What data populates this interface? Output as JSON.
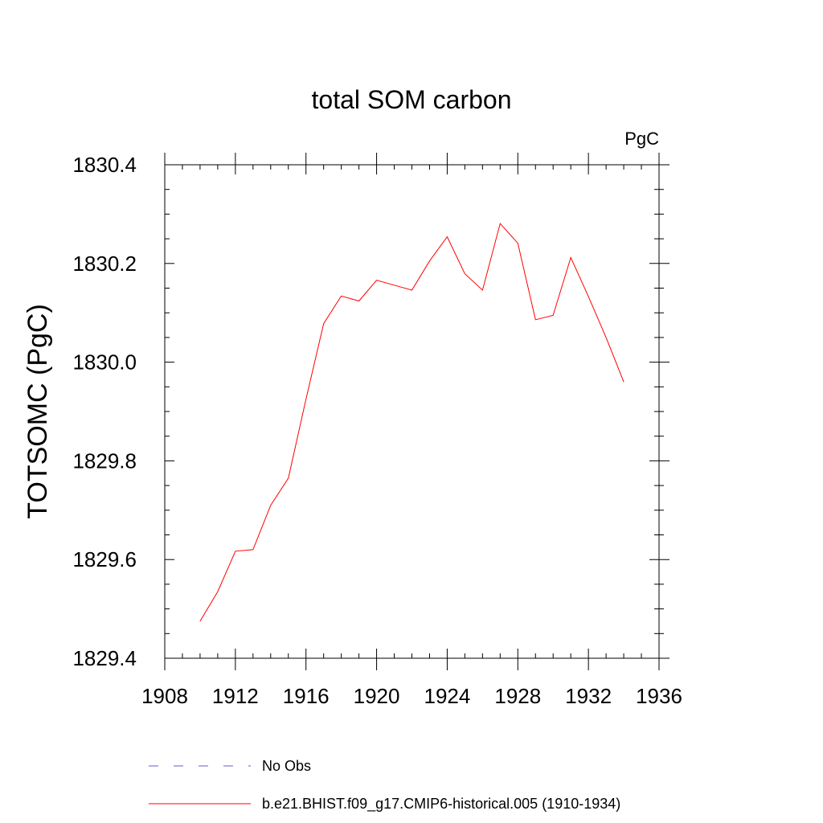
{
  "chart_data": {
    "type": "line",
    "title": "total SOM carbon",
    "units_label": "PgC",
    "ylabel": "TOTSOMC  (PgC)",
    "xlabel": "",
    "xlim": [
      1908,
      1936
    ],
    "ylim": [
      1829.4,
      1830.4
    ],
    "x_ticks": [
      1908,
      1912,
      1916,
      1920,
      1924,
      1928,
      1932,
      1936
    ],
    "x_tick_labels": [
      "1908",
      "1912",
      "1916",
      "1920",
      "1924",
      "1928",
      "1932",
      "1936"
    ],
    "y_ticks": [
      1829.4,
      1829.6,
      1829.8,
      1830.0,
      1830.2,
      1830.4
    ],
    "y_tick_labels": [
      "1829.4",
      "1829.6",
      "1829.8",
      "1830.0",
      "1830.2",
      "1830.4"
    ],
    "series": [
      {
        "name": "b.e21.BHIST.f09_g17.CMIP6-historical.005 (1910-1934)",
        "color": "#ff0000",
        "style": "solid",
        "x": [
          1910,
          1911,
          1912,
          1913,
          1914,
          1915,
          1916,
          1917,
          1918,
          1919,
          1920,
          1921,
          1922,
          1923,
          1924,
          1925,
          1926,
          1927,
          1928,
          1929,
          1930,
          1931,
          1932,
          1933,
          1934
        ],
        "values": [
          1829.475,
          1829.535,
          1829.617,
          1829.62,
          1829.71,
          1829.765,
          1829.925,
          1830.078,
          1830.134,
          1830.124,
          1830.166,
          1830.156,
          1830.146,
          1830.205,
          1830.254,
          1830.179,
          1830.146,
          1830.281,
          1830.241,
          1830.086,
          1830.095,
          1830.212,
          1830.133,
          1830.05,
          1829.96
        ]
      }
    ],
    "legend": {
      "placement": "bottom",
      "entries": [
        {
          "label": "No Obs",
          "color": "#6a5acd",
          "style": "dashed"
        },
        {
          "label": "b.e21.BHIST.f09_g17.CMIP6-historical.005 (1910-1934)",
          "color": "#ff0000",
          "style": "solid"
        }
      ]
    }
  }
}
